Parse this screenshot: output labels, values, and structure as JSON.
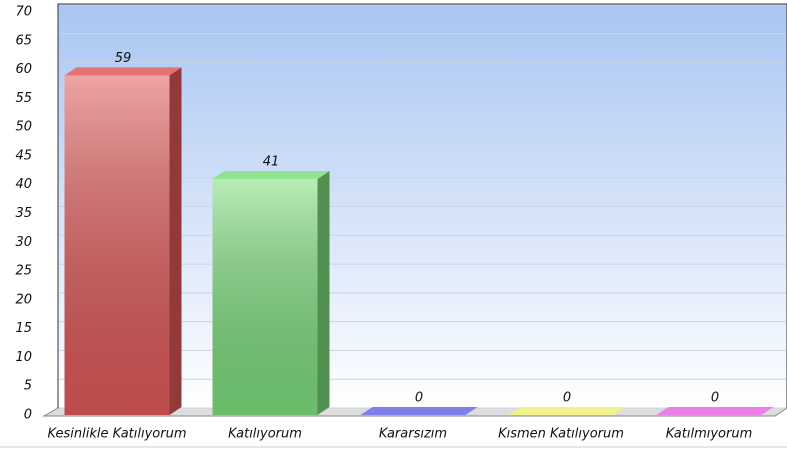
{
  "chart_data": {
    "type": "bar3d",
    "categories": [
      "Kesinlikle Katılıyorum",
      "Katılıyorum",
      "Kararsızım",
      "Kısmen Katılıyorum",
      "Katılmıyorum"
    ],
    "values": [
      59,
      41,
      0,
      0,
      0
    ],
    "colors": [
      "#e05a5a",
      "#7ede7e",
      "#6a6ae8",
      "#f0f07a",
      "#e86ae8"
    ],
    "ylim": [
      0,
      70
    ],
    "yticks": [
      0,
      5,
      10,
      15,
      20,
      25,
      30,
      35,
      40,
      45,
      50,
      55,
      60,
      65,
      70
    ],
    "grid": true
  }
}
